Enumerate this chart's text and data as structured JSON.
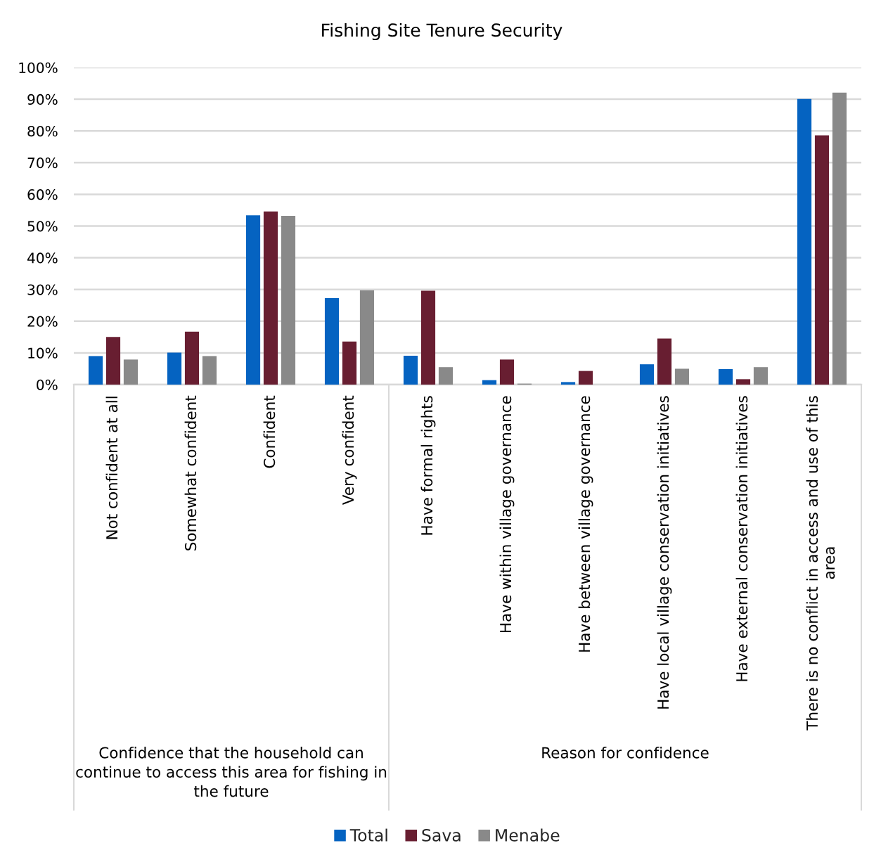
{
  "chart_data": {
    "type": "bar",
    "title": "Fishing Site Tenure Security",
    "categories": [
      "Not confident at all",
      "Somewhat confident",
      "Confident",
      "Very confident",
      "Have formal rights",
      "Have within village governance",
      "Have between village governance",
      "Have local village conservation initiatives",
      "Have external conservation initiatives",
      "There is no conflict in access and use of this\narea"
    ],
    "series": [
      {
        "name": "Total",
        "color": "#0563c1",
        "values": [
          9.0,
          10.1,
          53.4,
          27.3,
          9.1,
          1.4,
          0.8,
          6.4,
          4.9,
          90.1
        ]
      },
      {
        "name": "Sava",
        "color": "#681e31",
        "values": [
          15.0,
          16.7,
          54.6,
          13.6,
          29.6,
          7.9,
          4.3,
          14.5,
          1.7,
          78.6
        ]
      },
      {
        "name": "Menabe",
        "color": "#898989",
        "values": [
          7.9,
          9.0,
          53.2,
          29.7,
          5.5,
          0.3,
          0,
          5.0,
          5.5,
          92.1
        ]
      }
    ],
    "ylim": [
      0,
      100
    ],
    "yticks": [
      {
        "value": 0,
        "label": "0%"
      },
      {
        "value": 10,
        "label": "10%"
      },
      {
        "value": 20,
        "label": "20%"
      },
      {
        "value": 30,
        "label": "30%"
      },
      {
        "value": 40,
        "label": "40%"
      },
      {
        "value": 50,
        "label": "50%"
      },
      {
        "value": 60,
        "label": "60%"
      },
      {
        "value": 70,
        "label": "70%"
      },
      {
        "value": 80,
        "label": "80%"
      },
      {
        "value": 90,
        "label": "90%"
      },
      {
        "value": 100,
        "label": "100%"
      }
    ],
    "grid": "y",
    "legend": "bottom",
    "annotations": [
      "Confidence that the household can\ncontinue to access this area for fishing in\nthe future",
      "Reason for confidence"
    ]
  }
}
